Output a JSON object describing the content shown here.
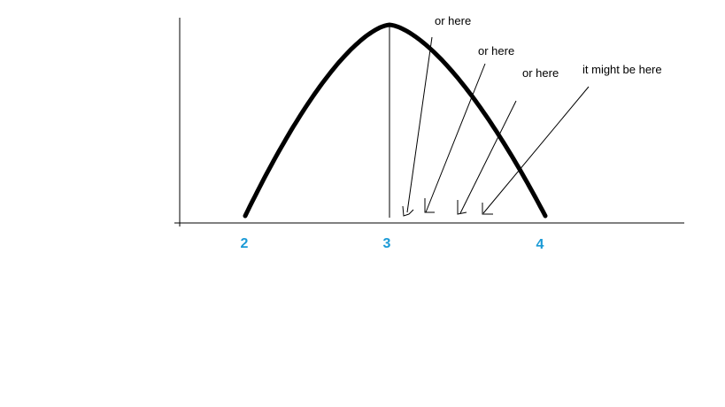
{
  "colors": {
    "curve": "#000000",
    "axis": "#000000",
    "tick_label": "#1a9ad6",
    "annotation": "#000000"
  },
  "axis": {
    "tick_labels": [
      "2",
      "3",
      "4"
    ]
  },
  "annotations": [
    {
      "text": "or here"
    },
    {
      "text": "or here"
    },
    {
      "text": "or here"
    },
    {
      "text": "it might be here"
    }
  ]
}
